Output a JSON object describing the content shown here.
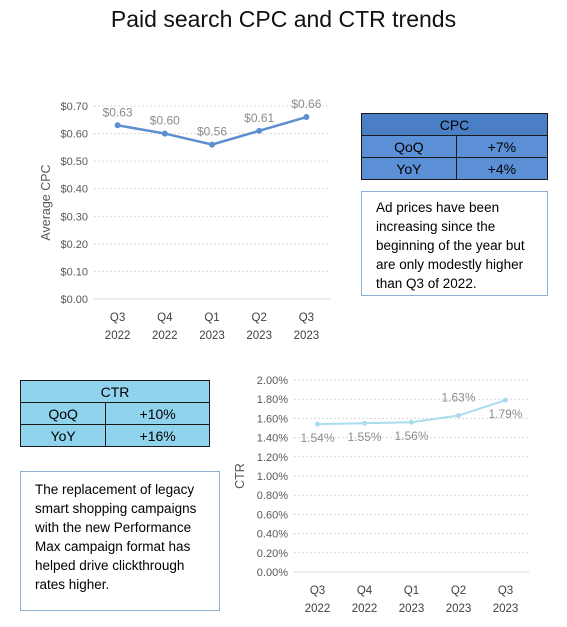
{
  "page_title": "Paid search CPC and CTR trends",
  "chart_data": [
    {
      "type": "line",
      "categories": [
        [
          "Q3",
          "2022"
        ],
        [
          "Q4",
          "2022"
        ],
        [
          "Q1",
          "2023"
        ],
        [
          "Q2",
          "2023"
        ],
        [
          "Q3",
          "2023"
        ]
      ],
      "values": [
        0.63,
        0.6,
        0.56,
        0.61,
        0.66
      ],
      "data_labels": [
        "$0.63",
        "$0.60",
        "$0.56",
        "$0.61",
        "$0.66"
      ],
      "ylabel": "Average CPC",
      "ylim": [
        0,
        0.7
      ],
      "yticks": [
        0,
        0.1,
        0.2,
        0.3,
        0.4,
        0.5,
        0.6,
        0.7
      ],
      "ytick_labels": [
        "$0.00",
        "$0.10",
        "$0.20",
        "$0.30",
        "$0.40",
        "$0.50",
        "$0.60",
        "$0.70"
      ],
      "grid": true,
      "line_color": "#5b8fcf"
    },
    {
      "type": "line",
      "categories": [
        [
          "Q3",
          "2022"
        ],
        [
          "Q4",
          "2022"
        ],
        [
          "Q1",
          "2023"
        ],
        [
          "Q2",
          "2023"
        ],
        [
          "Q3",
          "2023"
        ]
      ],
      "values": [
        1.54,
        1.55,
        1.56,
        1.63,
        1.79
      ],
      "data_labels": [
        "1.54%",
        "1.55%",
        "1.56%",
        "1.63%",
        "1.79%"
      ],
      "ylabel": "CTR",
      "ylim": [
        0,
        2.0
      ],
      "yticks": [
        0,
        0.2,
        0.4,
        0.6,
        0.8,
        1.0,
        1.2,
        1.4,
        1.6,
        1.8,
        2.0
      ],
      "ytick_labels": [
        "0.00%",
        "0.20%",
        "0.40%",
        "0.60%",
        "0.80%",
        "1.00%",
        "1.20%",
        "1.40%",
        "1.60%",
        "1.80%",
        "2.00%"
      ],
      "grid": true,
      "line_color": "#a9dcee"
    }
  ],
  "cpc_table": {
    "header": "CPC",
    "rows": [
      {
        "label": "QoQ",
        "value": "+7%"
      },
      {
        "label": "YoY",
        "value": "+4%"
      }
    ],
    "header_color": "#4a7fc6",
    "row_color": "#5b8fd6"
  },
  "ctr_table": {
    "header": "CTR",
    "rows": [
      {
        "label": "QoQ",
        "value": "+10%"
      },
      {
        "label": "YoY",
        "value": "+16%"
      }
    ],
    "header_color": "#8fd3ec",
    "row_color": "#8fd3ec"
  },
  "cpc_note": "Ad prices have been increasing since the beginning of the year but are only modestly higher than Q3 of 2022.",
  "ctr_note": "The replacement of legacy smart shopping campaigns with the new Performance Max campaign format has helped drive clickthrough rates higher."
}
